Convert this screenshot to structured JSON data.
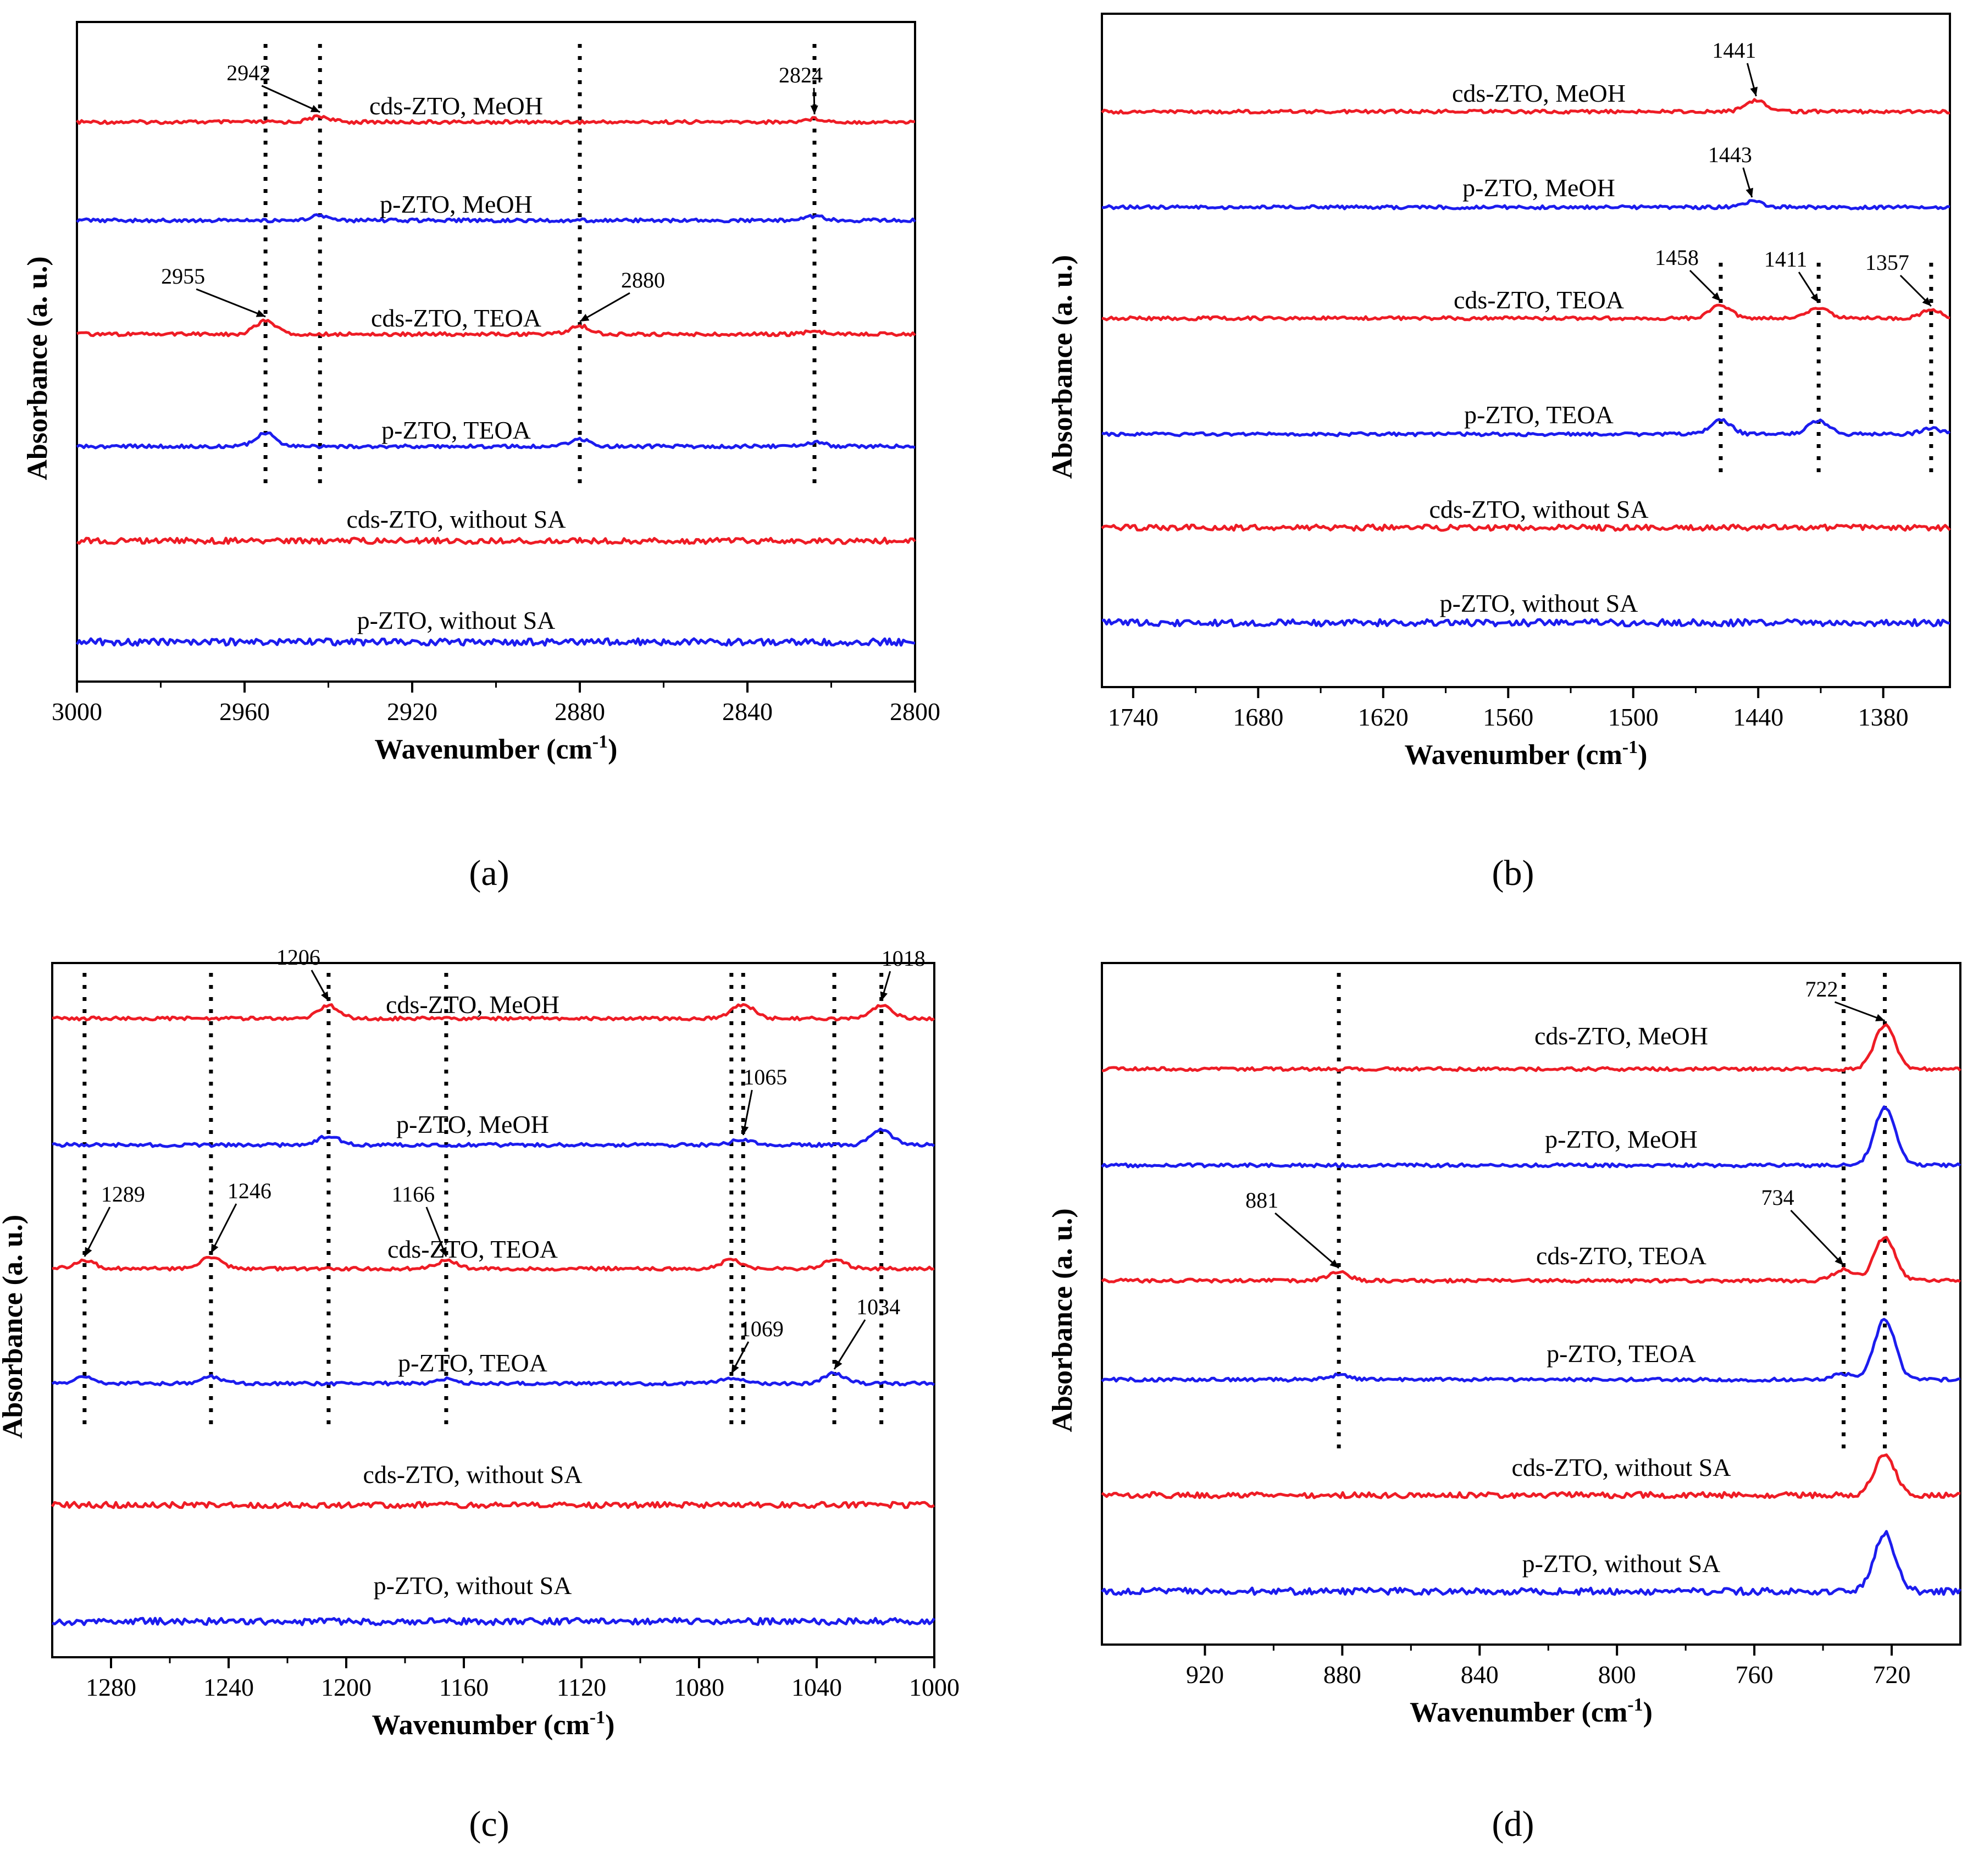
{
  "figure": {
    "colors": {
      "cds": "#ee1c25",
      "p": "#1c1cee",
      "axis": "#000000"
    },
    "panels": [
      {
        "id": "a",
        "caption": "(a)",
        "ylabel": "Absorbance (a. u.)",
        "xlabel": "Wavenumber (cm",
        "xlabel_sup": "-1",
        "xlabel_close": ")",
        "xlim": [
          3000,
          2800
        ],
        "xticks": [
          "3000",
          "2960",
          "2920",
          "2880",
          "2840",
          "2800"
        ],
        "traces": [
          {
            "label": "cds-ZTO, MeOH",
            "color": "cds",
            "peaks": [
              [
                2942,
                1.0
              ],
              [
                2824,
                0.6
              ]
            ]
          },
          {
            "label": "p-ZTO, MeOH",
            "color": "p",
            "peaks": [
              [
                2942,
                0.9
              ],
              [
                2824,
                0.7
              ]
            ]
          },
          {
            "label": "cds-ZTO, TEOA",
            "color": "cds",
            "peaks": [
              [
                2955,
                2.4
              ],
              [
                2880,
                1.5
              ],
              [
                2824,
                0.5
              ]
            ]
          },
          {
            "label": "p-ZTO, TEOA",
            "color": "p",
            "peaks": [
              [
                2955,
                2.4
              ],
              [
                2880,
                1.3
              ],
              [
                2824,
                0.7
              ]
            ]
          },
          {
            "label": "cds-ZTO, without SA",
            "color": "cds",
            "peaks": []
          },
          {
            "label": "p-ZTO, without SA",
            "color": "p",
            "peaks": []
          }
        ],
        "annotations": [
          {
            "text": "2942",
            "x": 2942,
            "trace": 0
          },
          {
            "text": "2824",
            "x": 2824,
            "trace": 0
          },
          {
            "text": "2955",
            "x": 2955,
            "trace": 2
          },
          {
            "text": "2880",
            "x": 2880,
            "trace": 2
          }
        ],
        "reference_lines": [
          2942,
          2824,
          2955,
          2880
        ]
      },
      {
        "id": "b",
        "caption": "(b)",
        "ylabel": "Absorbance (a. u.)",
        "xlabel": "Wavenumber (cm",
        "xlabel_sup": "-1",
        "xlabel_close": ")",
        "xlim": [
          1755,
          1348
        ],
        "xticks": [
          "1740",
          "1680",
          "1620",
          "1560",
          "1500",
          "1440",
          "1380"
        ],
        "traces": [
          {
            "label": "cds-ZTO, MeOH",
            "color": "cds",
            "peaks": [
              [
                1441,
                2.0
              ]
            ]
          },
          {
            "label": "p-ZTO, MeOH",
            "color": "p",
            "peaks": [
              [
                1443,
                1.0
              ]
            ]
          },
          {
            "label": "cds-ZTO, TEOA",
            "color": "cds",
            "peaks": [
              [
                1458,
                2.3
              ],
              [
                1411,
                2.0
              ],
              [
                1357,
                1.4
              ]
            ]
          },
          {
            "label": "p-ZTO, TEOA",
            "color": "p",
            "peaks": [
              [
                1458,
                2.6
              ],
              [
                1411,
                2.4
              ],
              [
                1357,
                1.0
              ]
            ]
          },
          {
            "label": "cds-ZTO, without SA",
            "color": "cds",
            "peaks": []
          },
          {
            "label": "p-ZTO, without SA",
            "color": "p",
            "peaks": []
          }
        ],
        "annotations": [
          {
            "text": "1441",
            "x": 1441,
            "trace": 0
          },
          {
            "text": "1443",
            "x": 1443,
            "trace": 1
          },
          {
            "text": "1458",
            "x": 1458,
            "trace": 2
          },
          {
            "text": "1411",
            "x": 1411,
            "trace": 2
          },
          {
            "text": "1357",
            "x": 1357,
            "trace": 2
          }
        ],
        "reference_lines": [
          1458,
          1411,
          1357
        ]
      },
      {
        "id": "c",
        "caption": "(c)",
        "ylabel": "Absorbance (a. u.)",
        "xlabel": "Wavenumber (cm",
        "xlabel_sup": "-1",
        "xlabel_close": ")",
        "xlim": [
          1300,
          1000
        ],
        "xticks": [
          "1280",
          "1240",
          "1200",
          "1160",
          "1120",
          "1080",
          "1040",
          "1000"
        ],
        "traces": [
          {
            "label": "cds-ZTO, MeOH",
            "color": "cds",
            "peaks": [
              [
                1206,
                2.4
              ],
              [
                1065,
                2.6
              ],
              [
                1018,
                2.4
              ]
            ]
          },
          {
            "label": "p-ZTO, MeOH",
            "color": "p",
            "peaks": [
              [
                1206,
                1.6
              ],
              [
                1065,
                1.0
              ],
              [
                1018,
                2.8
              ]
            ]
          },
          {
            "label": "cds-ZTO, TEOA",
            "color": "cds",
            "peaks": [
              [
                1289,
                1.4
              ],
              [
                1246,
                2.0
              ],
              [
                1166,
                1.4
              ],
              [
                1069,
                1.6
              ],
              [
                1034,
                1.6
              ]
            ]
          },
          {
            "label": "p-ZTO, TEOA",
            "color": "p",
            "peaks": [
              [
                1289,
                1.2
              ],
              [
                1246,
                1.2
              ],
              [
                1166,
                0.8
              ],
              [
                1069,
                1.0
              ],
              [
                1034,
                1.8
              ]
            ]
          },
          {
            "label": "cds-ZTO, without SA",
            "color": "cds",
            "peaks": []
          },
          {
            "label": "p-ZTO, without SA",
            "color": "p",
            "peaks": []
          }
        ],
        "annotations": [
          {
            "text": "1206",
            "x": 1206,
            "trace": 0
          },
          {
            "text": "1018",
            "x": 1018,
            "trace": 0
          },
          {
            "text": "1065",
            "x": 1065,
            "trace": 1
          },
          {
            "text": "1289",
            "x": 1289,
            "trace": 2
          },
          {
            "text": "1246",
            "x": 1246,
            "trace": 2
          },
          {
            "text": "1166",
            "x": 1166,
            "trace": 2
          },
          {
            "text": "1069",
            "x": 1069,
            "trace": 3
          },
          {
            "text": "1034",
            "x": 1034,
            "trace": 3
          }
        ],
        "reference_lines": [
          1206,
          1065,
          1018,
          1289,
          1246,
          1166,
          1069,
          1034
        ]
      },
      {
        "id": "d",
        "caption": "(d)",
        "ylabel": "Absorbance (a. u.)",
        "xlabel": "Wavenumber (cm",
        "xlabel_sup": "-1",
        "xlabel_close": ")",
        "xlim": [
          950,
          700
        ],
        "xticks": [
          "920",
          "880",
          "840",
          "800",
          "760",
          "720"
        ],
        "traces": [
          {
            "label": "cds-ZTO, MeOH",
            "color": "cds",
            "peaks": [
              [
                722,
                8.0
              ]
            ]
          },
          {
            "label": "p-ZTO, MeOH",
            "color": "p",
            "peaks": [
              [
                722,
                10.5
              ]
            ]
          },
          {
            "label": "cds-ZTO, TEOA",
            "color": "cds",
            "peaks": [
              [
                881,
                1.5
              ],
              [
                734,
                2.0
              ],
              [
                722,
                8.0
              ]
            ]
          },
          {
            "label": "p-ZTO, TEOA",
            "color": "p",
            "peaks": [
              [
                881,
                0.8
              ],
              [
                734,
                1.0
              ],
              [
                722,
                11.0
              ]
            ]
          },
          {
            "label": "cds-ZTO, without SA",
            "color": "cds",
            "peaks": [
              [
                722,
                7.5
              ]
            ]
          },
          {
            "label": "p-ZTO, without SA",
            "color": "p",
            "peaks": [
              [
                722,
                10.5
              ]
            ]
          }
        ],
        "annotations": [
          {
            "text": "722",
            "x": 722,
            "trace": 0
          },
          {
            "text": "881",
            "x": 881,
            "trace": 2
          },
          {
            "text": "734",
            "x": 734,
            "trace": 2
          }
        ],
        "reference_lines": [
          722,
          881,
          734
        ]
      }
    ]
  }
}
